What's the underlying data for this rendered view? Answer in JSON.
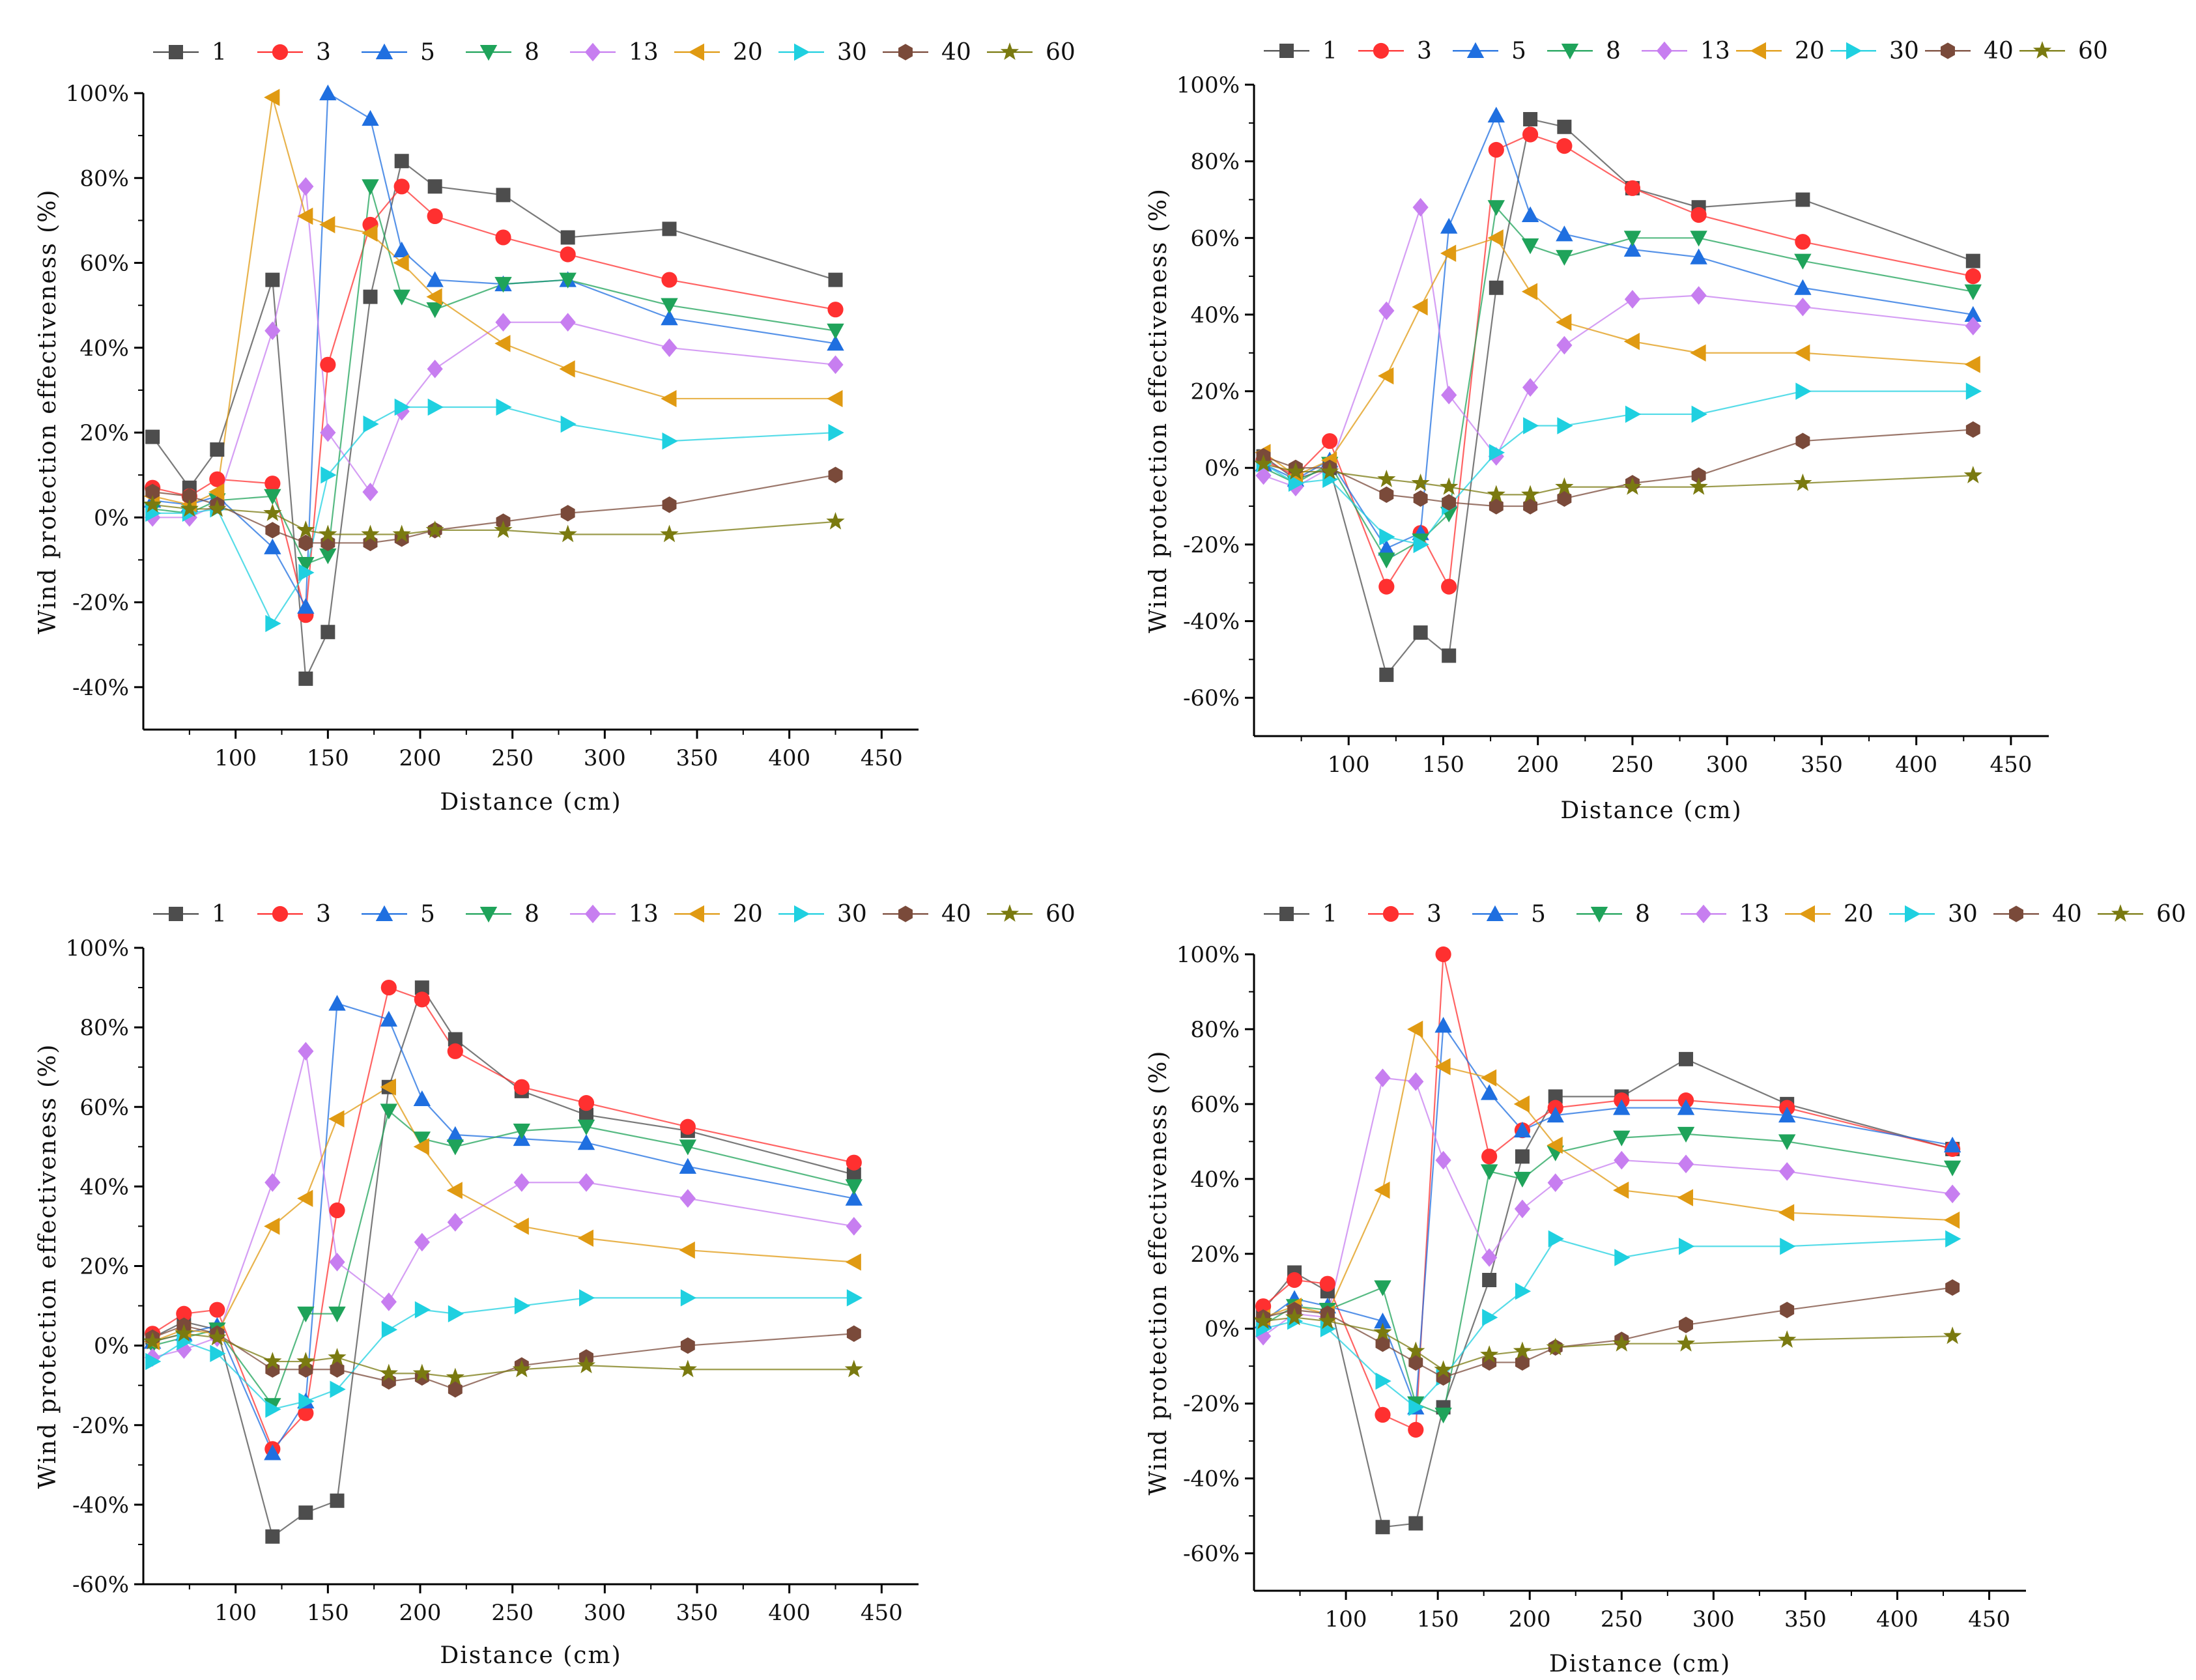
{
  "figure": {
    "panel_count": 4
  },
  "chart_data": [
    {
      "type": "line",
      "panel": "top-left",
      "xlabel": "Distance (cm)",
      "ylabel": "Wind protection effectiveness (%)",
      "xlim": [
        50,
        470
      ],
      "ylim": [
        -50,
        100
      ],
      "xticks": [
        100,
        150,
        200,
        250,
        300,
        350,
        400,
        450
      ],
      "yticks": [
        -40,
        -20,
        0,
        20,
        40,
        60,
        80,
        100
      ],
      "x": [
        55,
        75,
        90,
        120,
        138,
        150,
        173,
        190,
        208,
        245,
        280,
        335,
        425
      ],
      "series": [
        {
          "name": "1",
          "color": "#4d4d4d",
          "marker": "square",
          "values": [
            19,
            7,
            16,
            56,
            -38,
            -27,
            52,
            84,
            78,
            76,
            66,
            68,
            56
          ]
        },
        {
          "name": "3",
          "color": "#ff3030",
          "marker": "circle",
          "values": [
            7,
            5,
            9,
            8,
            -23,
            36,
            69,
            78,
            71,
            66,
            62,
            56,
            49
          ]
        },
        {
          "name": "5",
          "color": "#1f6fe0",
          "marker": "triangle-up",
          "values": [
            4,
            3,
            5,
            -7,
            -21,
            100,
            94,
            63,
            56,
            55,
            56,
            47,
            41
          ]
        },
        {
          "name": "8",
          "color": "#1fa35a",
          "marker": "triangle-down",
          "values": [
            2,
            1,
            4,
            5,
            -11,
            -9,
            78,
            52,
            49,
            55,
            56,
            50,
            44
          ]
        },
        {
          "name": "13",
          "color": "#c77ef0",
          "marker": "diamond",
          "values": [
            0,
            0,
            3,
            44,
            78,
            20,
            6,
            25,
            35,
            46,
            46,
            40,
            36
          ]
        },
        {
          "name": "20",
          "color": "#e09a12",
          "marker": "triangle-left",
          "values": [
            5,
            3,
            6,
            99,
            71,
            69,
            67,
            60,
            52,
            41,
            35,
            28,
            28
          ]
        },
        {
          "name": "30",
          "color": "#1fd0e0",
          "marker": "triangle-right",
          "values": [
            1,
            1,
            2,
            -25,
            -13,
            10,
            22,
            26,
            26,
            26,
            22,
            18,
            20
          ]
        },
        {
          "name": "40",
          "color": "#7a4a3a",
          "marker": "hexagon",
          "values": [
            6,
            5,
            3,
            -3,
            -6,
            -6,
            -6,
            -5,
            -3,
            -1,
            1,
            3,
            10
          ]
        },
        {
          "name": "60",
          "color": "#7a7a10",
          "marker": "star",
          "values": [
            3,
            2,
            2,
            1,
            -3,
            -4,
            -4,
            -4,
            -3,
            -3,
            -4,
            -4,
            -1
          ]
        }
      ]
    },
    {
      "type": "line",
      "panel": "top-right",
      "xlabel": "Distance (cm)",
      "ylabel": "Wind protection effectiveness (%)",
      "xlim": [
        50,
        470
      ],
      "ylim": [
        -70,
        100
      ],
      "xticks": [
        100,
        150,
        200,
        250,
        300,
        350,
        400,
        450
      ],
      "yticks": [
        -60,
        -40,
        -20,
        0,
        20,
        40,
        60,
        80,
        100
      ],
      "x": [
        55,
        72,
        90,
        120,
        138,
        153,
        178,
        196,
        214,
        250,
        285,
        340,
        430
      ],
      "series": [
        {
          "name": "1",
          "color": "#4d4d4d",
          "marker": "square",
          "values": [
            3,
            -3,
            0,
            -54,
            -43,
            -49,
            47,
            91,
            89,
            73,
            68,
            70,
            54
          ]
        },
        {
          "name": "3",
          "color": "#ff3030",
          "marker": "circle",
          "values": [
            2,
            -2,
            7,
            -31,
            -17,
            -31,
            83,
            87,
            84,
            73,
            66,
            59,
            50
          ]
        },
        {
          "name": "5",
          "color": "#1f6fe0",
          "marker": "triangle-up",
          "values": [
            1,
            -3,
            2,
            -21,
            -17,
            63,
            92,
            66,
            61,
            57,
            55,
            47,
            40
          ]
        },
        {
          "name": "8",
          "color": "#1fa35a",
          "marker": "triangle-down",
          "values": [
            0,
            -4,
            1,
            -24,
            -19,
            -12,
            68,
            58,
            55,
            60,
            60,
            54,
            46
          ]
        },
        {
          "name": "13",
          "color": "#c77ef0",
          "marker": "diamond",
          "values": [
            -2,
            -5,
            0,
            41,
            68,
            19,
            3,
            21,
            32,
            44,
            45,
            42,
            37
          ]
        },
        {
          "name": "20",
          "color": "#e09a12",
          "marker": "triangle-left",
          "values": [
            4,
            -2,
            2,
            24,
            42,
            56,
            60,
            46,
            38,
            33,
            30,
            30,
            27
          ]
        },
        {
          "name": "30",
          "color": "#1fd0e0",
          "marker": "triangle-right",
          "values": [
            1,
            -4,
            -3,
            -18,
            -20,
            -10,
            4,
            11,
            11,
            14,
            14,
            20,
            20
          ]
        },
        {
          "name": "40",
          "color": "#7a4a3a",
          "marker": "hexagon",
          "values": [
            3,
            0,
            0,
            -7,
            -8,
            -9,
            -10,
            -10,
            -8,
            -4,
            -2,
            7,
            10
          ]
        },
        {
          "name": "60",
          "color": "#7a7a10",
          "marker": "star",
          "values": [
            1,
            -1,
            -1,
            -3,
            -4,
            -5,
            -7,
            -7,
            -5,
            -5,
            -5,
            -4,
            -2
          ]
        }
      ]
    },
    {
      "type": "line",
      "panel": "bottom-left",
      "xlabel": "Distance (cm)",
      "ylabel": "Wind protection effectiveness (%)",
      "xlim": [
        50,
        470
      ],
      "ylim": [
        -60,
        100
      ],
      "xticks": [
        100,
        150,
        200,
        250,
        300,
        350,
        400,
        450
      ],
      "yticks": [
        -60,
        -40,
        -20,
        0,
        20,
        40,
        60,
        80,
        100
      ],
      "x": [
        55,
        72,
        90,
        120,
        138,
        155,
        183,
        201,
        219,
        255,
        290,
        345,
        435
      ],
      "series": [
        {
          "name": "1",
          "color": "#4d4d4d",
          "marker": "square",
          "values": [
            2,
            6,
            4,
            -48,
            -42,
            -39,
            65,
            90,
            77,
            64,
            58,
            54,
            43
          ]
        },
        {
          "name": "3",
          "color": "#ff3030",
          "marker": "circle",
          "values": [
            3,
            8,
            9,
            -26,
            -17,
            34,
            90,
            87,
            74,
            65,
            61,
            55,
            46
          ]
        },
        {
          "name": "5",
          "color": "#1f6fe0",
          "marker": "triangle-up",
          "values": [
            1,
            3,
            5,
            -27,
            -14,
            86,
            82,
            62,
            53,
            52,
            51,
            45,
            37
          ]
        },
        {
          "name": "8",
          "color": "#1fa35a",
          "marker": "triangle-down",
          "values": [
            0,
            2,
            4,
            -15,
            8,
            8,
            59,
            52,
            50,
            54,
            55,
            50,
            40
          ]
        },
        {
          "name": "13",
          "color": "#c77ef0",
          "marker": "diamond",
          "values": [
            -3,
            -1,
            2,
            41,
            74,
            21,
            11,
            26,
            31,
            41,
            41,
            37,
            30
          ]
        },
        {
          "name": "20",
          "color": "#e09a12",
          "marker": "triangle-left",
          "values": [
            1,
            4,
            3,
            30,
            37,
            57,
            65,
            50,
            39,
            30,
            27,
            24,
            21
          ]
        },
        {
          "name": "30",
          "color": "#1fd0e0",
          "marker": "triangle-right",
          "values": [
            -4,
            1,
            -2,
            -16,
            -14,
            -11,
            4,
            9,
            8,
            10,
            12,
            12,
            12
          ]
        },
        {
          "name": "40",
          "color": "#7a4a3a",
          "marker": "hexagon",
          "values": [
            2,
            5,
            3,
            -6,
            -6,
            -6,
            -9,
            -8,
            -11,
            -5,
            -3,
            0,
            3
          ]
        },
        {
          "name": "60",
          "color": "#7a7a10",
          "marker": "star",
          "values": [
            1,
            3,
            2,
            -4,
            -4,
            -3,
            -7,
            -7,
            -8,
            -6,
            -5,
            -6,
            -6
          ]
        }
      ]
    },
    {
      "type": "line",
      "panel": "bottom-right",
      "xlabel": "Distance (cm)",
      "ylabel": "Wind protection effectiveness (%)",
      "xlim": [
        50,
        470
      ],
      "ylim": [
        -70,
        100
      ],
      "xticks": [
        100,
        150,
        200,
        250,
        300,
        350,
        400,
        450
      ],
      "yticks": [
        -60,
        -40,
        -20,
        0,
        20,
        40,
        60,
        80,
        100
      ],
      "x": [
        55,
        72,
        90,
        120,
        138,
        153,
        178,
        196,
        214,
        250,
        285,
        340,
        430
      ],
      "series": [
        {
          "name": "1",
          "color": "#4d4d4d",
          "marker": "square",
          "values": [
            5,
            15,
            10,
            -53,
            -52,
            -21,
            13,
            46,
            62,
            62,
            72,
            60,
            48
          ]
        },
        {
          "name": "3",
          "color": "#ff3030",
          "marker": "circle",
          "values": [
            6,
            13,
            12,
            -23,
            -27,
            100,
            46,
            53,
            59,
            61,
            61,
            59,
            48
          ]
        },
        {
          "name": "5",
          "color": "#1f6fe0",
          "marker": "triangle-up",
          "values": [
            2,
            8,
            6,
            2,
            -21,
            81,
            63,
            53,
            57,
            59,
            59,
            57,
            49
          ]
        },
        {
          "name": "8",
          "color": "#1fa35a",
          "marker": "triangle-down",
          "values": [
            1,
            6,
            5,
            11,
            -20,
            -23,
            42,
            40,
            47,
            51,
            52,
            50,
            43
          ]
        },
        {
          "name": "13",
          "color": "#c77ef0",
          "marker": "diamond",
          "values": [
            -2,
            4,
            3,
            67,
            66,
            45,
            19,
            32,
            39,
            45,
            44,
            42,
            36
          ]
        },
        {
          "name": "20",
          "color": "#e09a12",
          "marker": "triangle-left",
          "values": [
            3,
            6,
            4,
            37,
            80,
            70,
            67,
            60,
            49,
            37,
            35,
            31,
            29
          ]
        },
        {
          "name": "30",
          "color": "#1fd0e0",
          "marker": "triangle-right",
          "values": [
            0,
            2,
            0,
            -14,
            -21,
            -13,
            3,
            10,
            24,
            19,
            22,
            22,
            24
          ]
        },
        {
          "name": "40",
          "color": "#7a4a3a",
          "marker": "hexagon",
          "values": [
            3,
            5,
            4,
            -4,
            -9,
            -13,
            -9,
            -9,
            -5,
            -3,
            1,
            5,
            11
          ]
        },
        {
          "name": "60",
          "color": "#7a7a10",
          "marker": "star",
          "values": [
            2,
            3,
            2,
            -1,
            -6,
            -11,
            -7,
            -6,
            -5,
            -4,
            -4,
            -3,
            -2
          ]
        }
      ]
    }
  ]
}
